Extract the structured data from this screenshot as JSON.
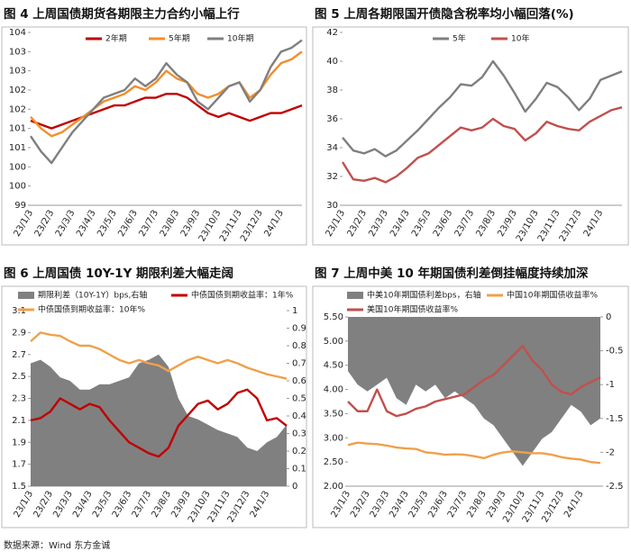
{
  "chart_data": [
    {
      "type": "line",
      "title": "图 4  上周国债期货各期限主力合约小幅上行",
      "categories": [
        "23/1/3",
        null,
        "23/2/3",
        null,
        "23/3/3",
        null,
        "23/4/3",
        null,
        "23/5/3",
        null,
        "23/6/3",
        null,
        "23/7/3",
        null,
        "23/8/3",
        null,
        "23/9/3",
        null,
        "23/10/3",
        null,
        "23/11/3",
        null,
        "23/12/3",
        null,
        "24/1/3",
        null,
        null
      ],
      "ylim": [
        99,
        103.5
      ],
      "yticks": [
        99,
        {
          "value": 99.5,
          "label": "100"
        },
        100,
        {
          "value": 100.5,
          "label": "101"
        },
        101,
        {
          "value": 101.5,
          "label": "102"
        },
        102,
        {
          "value": 102.5,
          "label": "103"
        },
        103,
        {
          "value": 103.5,
          "label": "104"
        }
      ],
      "series": [
        {
          "name": "2年期",
          "color": "#c00000",
          "values": [
            101.2,
            101.1,
            101.0,
            101.1,
            101.2,
            101.3,
            101.4,
            101.5,
            101.6,
            101.6,
            101.7,
            101.8,
            101.8,
            101.9,
            101.9,
            101.8,
            101.6,
            101.4,
            101.3,
            101.4,
            101.3,
            101.2,
            101.3,
            101.4,
            101.4,
            101.5,
            101.6
          ]
        },
        {
          "name": "5年期",
          "color": "#f28e2b",
          "values": [
            101.3,
            101.0,
            100.8,
            100.9,
            101.1,
            101.3,
            101.5,
            101.7,
            101.8,
            101.9,
            102.1,
            102.0,
            102.2,
            102.5,
            102.3,
            102.2,
            101.9,
            101.8,
            101.9,
            102.1,
            102.2,
            101.8,
            102.0,
            102.4,
            102.7,
            102.8,
            103.0
          ]
        },
        {
          "name": "10年期",
          "color": "#7f7f7f",
          "values": [
            100.8,
            100.4,
            100.1,
            100.5,
            100.9,
            101.2,
            101.5,
            101.8,
            101.9,
            102.0,
            102.3,
            102.1,
            102.3,
            102.7,
            102.4,
            102.2,
            101.7,
            101.5,
            101.8,
            102.1,
            102.2,
            101.7,
            102.0,
            102.6,
            103.0,
            103.1,
            103.3
          ]
        }
      ]
    },
    {
      "type": "line",
      "title": "图 5  上周各期限国开债隐含税率均小幅回落(%)",
      "categories": [
        "23/1/3",
        null,
        "23/2/3",
        null,
        "23/3/3",
        null,
        "23/4/3",
        null,
        "23/5/3",
        null,
        "23/6/3",
        null,
        "23/7/3",
        null,
        "23/8/3",
        null,
        "23/9/3",
        null,
        "23/10/3",
        null,
        "23/11/3",
        null,
        "23/12/3",
        null,
        "24/1/3",
        null,
        null
      ],
      "ylim": [
        30,
        42
      ],
      "yticks": [
        30,
        32,
        34,
        36,
        38,
        40,
        42
      ],
      "series": [
        {
          "name": "5年",
          "color": "#7f7f7f",
          "values": [
            34.7,
            33.8,
            33.6,
            33.9,
            33.4,
            33.8,
            34.5,
            35.2,
            36.0,
            36.8,
            37.5,
            38.4,
            38.3,
            38.9,
            40.0,
            39.0,
            37.8,
            36.5,
            37.4,
            38.5,
            38.2,
            37.5,
            36.6,
            37.4,
            38.7,
            39.0,
            39.3
          ]
        },
        {
          "name": "10年",
          "color": "#c0504d",
          "values": [
            33.0,
            31.8,
            31.7,
            31.9,
            31.6,
            32.0,
            32.6,
            33.3,
            33.6,
            34.2,
            34.8,
            35.4,
            35.2,
            35.4,
            36.0,
            35.5,
            35.3,
            34.5,
            35.0,
            35.8,
            35.5,
            35.3,
            35.2,
            35.8,
            36.2,
            36.6,
            36.8
          ]
        }
      ]
    },
    {
      "type": "line",
      "title": "图 6  上周国债 10Y-1Y 期限利差大幅走阔",
      "categories": [
        "23/1/3",
        null,
        "23/2/3",
        null,
        "23/3/3",
        null,
        "23/4/3",
        null,
        "23/5/3",
        null,
        "23/6/3",
        null,
        "23/7/3",
        null,
        "23/8/3",
        null,
        "23/9/3",
        null,
        "23/10/3",
        null,
        "23/11/3",
        null,
        "23/12/3",
        null,
        "24/1/3",
        null,
        null
      ],
      "ylim": [
        1.5,
        3.1
      ],
      "yticks": [
        1.5,
        1.7,
        1.9,
        2.1,
        2.3,
        2.5,
        2.7,
        2.9,
        3.1
      ],
      "y2lim": [
        0,
        1
      ],
      "y2ticks": [
        0,
        0.1,
        0.2,
        0.3,
        0.4,
        0.5,
        0.6,
        0.7,
        0.8,
        0.9,
        1
      ],
      "series": [
        {
          "name": "期限利差（10Y-1Y）bps,右轴",
          "type": "area",
          "axis": "y2",
          "color": "#808080",
          "values": [
            0.7,
            0.72,
            0.68,
            0.62,
            0.6,
            0.55,
            0.55,
            0.58,
            0.58,
            0.6,
            0.62,
            0.7,
            0.72,
            0.75,
            0.68,
            0.5,
            0.4,
            0.38,
            0.35,
            0.32,
            0.3,
            0.28,
            0.22,
            0.2,
            0.25,
            0.28,
            0.35
          ]
        },
        {
          "name": "中债国债到期收益率：1年%",
          "color": "#c00000",
          "values": [
            2.1,
            2.12,
            2.18,
            2.3,
            2.25,
            2.2,
            2.25,
            2.22,
            2.1,
            2.0,
            1.9,
            1.85,
            1.8,
            1.77,
            1.85,
            2.05,
            2.15,
            2.25,
            2.28,
            2.2,
            2.25,
            2.35,
            2.38,
            2.3,
            2.1,
            2.12,
            2.05
          ]
        },
        {
          "name": "中债国债到期收益率：10年%",
          "color": "#f0a04b",
          "values": [
            2.82,
            2.9,
            2.88,
            2.87,
            2.82,
            2.78,
            2.78,
            2.75,
            2.7,
            2.65,
            2.62,
            2.65,
            2.62,
            2.6,
            2.55,
            2.6,
            2.65,
            2.68,
            2.65,
            2.62,
            2.65,
            2.62,
            2.58,
            2.55,
            2.52,
            2.5,
            2.48
          ]
        }
      ]
    },
    {
      "type": "line",
      "title": "图 7  上周中美 10 年期国债利差倒挂幅度持续加深",
      "categories": [
        "23/1/3",
        null,
        "23/2/3",
        null,
        "23/3/3",
        null,
        "23/4/3",
        null,
        "23/5/3",
        null,
        "23/6/3",
        null,
        "23/7/3",
        null,
        "23/8/3",
        null,
        "23/9/3",
        null,
        "23/10/3",
        null,
        "23/11/3",
        null,
        "23/12/3",
        null,
        "24/1/3",
        null,
        null
      ],
      "ylim": [
        2,
        5.5
      ],
      "yticks": [
        {
          "value": 2,
          "label": "2.00"
        },
        {
          "value": 2.5,
          "label": "2.50"
        },
        {
          "value": 3,
          "label": "3.00"
        },
        {
          "value": 3.5,
          "label": "3.50"
        },
        {
          "value": 4,
          "label": "4.00"
        },
        {
          "value": 4.5,
          "label": "4.50"
        },
        {
          "value": 5,
          "label": "5.00"
        },
        {
          "value": 5.5,
          "label": "5.50"
        }
      ],
      "y2lim": [
        -2.5,
        0
      ],
      "y2ticks": [
        -2.5,
        -2,
        -1.5,
        -1,
        -0.5,
        0
      ],
      "series": [
        {
          "name": "中美10年期国债利差bps，右轴",
          "type": "area",
          "axis": "y2",
          "color": "#808080",
          "values": [
            -0.8,
            -1.0,
            -1.1,
            -1.0,
            -0.9,
            -1.2,
            -1.3,
            -1.0,
            -1.1,
            -1.0,
            -1.2,
            -1.1,
            -1.2,
            -1.3,
            -1.5,
            -1.6,
            -1.8,
            -2.0,
            -2.2,
            -2.0,
            -1.8,
            -1.7,
            -1.5,
            -1.3,
            -1.4,
            -1.6,
            -1.5
          ]
        },
        {
          "name": "中国10年期国债收益率%",
          "color": "#f0a04b",
          "values": [
            2.85,
            2.9,
            2.88,
            2.87,
            2.84,
            2.8,
            2.78,
            2.77,
            2.7,
            2.68,
            2.65,
            2.66,
            2.65,
            2.62,
            2.58,
            2.65,
            2.7,
            2.72,
            2.7,
            2.68,
            2.68,
            2.65,
            2.6,
            2.57,
            2.55,
            2.5,
            2.48
          ]
        },
        {
          "name": "美国10年期国债收益率%",
          "color": "#c0504d",
          "values": [
            3.75,
            3.55,
            3.55,
            4.0,
            3.55,
            3.45,
            3.5,
            3.6,
            3.65,
            3.75,
            3.8,
            3.85,
            3.9,
            4.05,
            4.2,
            4.3,
            4.5,
            4.7,
            4.9,
            4.6,
            4.4,
            4.1,
            3.95,
            3.9,
            4.05,
            4.15,
            4.25
          ]
        }
      ]
    }
  ],
  "source": "数据来源：Wind 东方金诚"
}
